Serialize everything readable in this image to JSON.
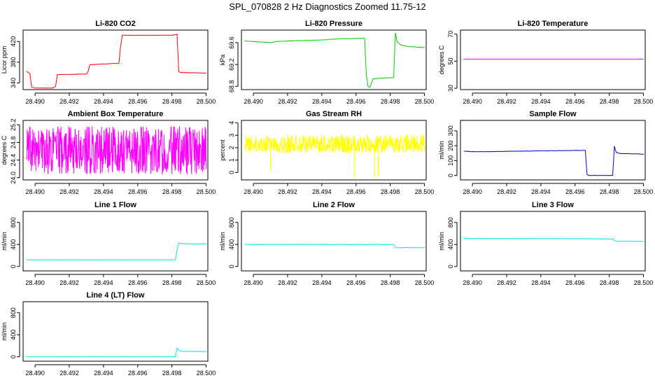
{
  "figure": {
    "title": "SPL_070828  2 Hz Diagnostics Zoomed 11.75-12",
    "x_ticks": [
      "28.490",
      "28.492",
      "28.494",
      "28.496",
      "28.498",
      "28.500"
    ]
  },
  "chart_data": [
    {
      "type": "line",
      "title": "Li-820 CO2",
      "ylabel": "Licor ppm",
      "color": "#ff0000",
      "xlim": [
        28.4893,
        28.5001
      ],
      "ylim": [
        327,
        442
      ],
      "yticks": [
        340,
        380,
        420
      ],
      "x": [
        28.4895,
        28.4897,
        28.4898,
        28.49,
        28.491,
        28.4912,
        28.4913,
        28.493,
        28.4931,
        28.4932,
        28.4949,
        28.495,
        28.4951,
        28.498,
        28.4983,
        28.4984,
        28.4985,
        28.5
      ],
      "y": [
        362,
        358,
        332,
        330,
        330,
        333,
        356,
        357,
        362,
        375,
        378,
        410,
        432,
        432,
        434,
        362,
        360,
        359
      ]
    },
    {
      "type": "line",
      "title": "Li-820 Pressure",
      "ylabel": "kPa",
      "color": "#00cc00",
      "xlim": [
        28.4893,
        28.5001
      ],
      "ylim": [
        68.74,
        69.83
      ],
      "yticks": [
        68.8,
        69.2,
        69.6
      ],
      "x": [
        28.4895,
        28.491,
        28.4913,
        28.492,
        28.494,
        28.495,
        28.4965,
        28.4966,
        28.4967,
        28.4968,
        28.497,
        28.4982,
        28.4983,
        28.4984,
        28.4986,
        28.499,
        28.5
      ],
      "y": [
        69.63,
        69.6,
        69.62,
        69.63,
        69.65,
        69.67,
        69.68,
        69.02,
        68.8,
        68.78,
        68.94,
        68.96,
        69.78,
        69.62,
        69.56,
        69.53,
        69.51
      ]
    },
    {
      "type": "line",
      "title": "Li-820 Temperature",
      "ylabel": "degrees C",
      "color": "#ff00ff",
      "xlim": [
        28.4893,
        28.5001
      ],
      "ylim": [
        29,
        73
      ],
      "yticks": [
        30,
        50,
        70
      ],
      "x": [
        28.4895,
        28.5
      ],
      "y": [
        51.5,
        51.5
      ]
    },
    {
      "type": "line",
      "title": "Ambient Box Temperature",
      "ylabel": "degrees C",
      "color": "#ff00ff",
      "xlim": [
        28.4893,
        28.5001
      ],
      "ylim": [
        23.95,
        25.3
      ],
      "yticks": [
        24.0,
        24.4,
        24.8,
        25.2
      ],
      "x": [
        28.4895,
        28.49,
        28.4905,
        28.491,
        28.4915,
        28.492,
        28.4925,
        28.493,
        28.4935,
        28.494,
        28.4945,
        28.495,
        28.4955,
        28.496,
        28.4965,
        28.497,
        28.4975,
        28.498,
        28.4985,
        28.499,
        28.4995,
        28.5
      ],
      "y": [
        24.6,
        24.3,
        25.1,
        24.4,
        24.9,
        24.2,
        25.0,
        24.5,
        24.8,
        24.1,
        25.2,
        24.4,
        24.7,
        24.3,
        25.0,
        24.5,
        24.9,
        24.2,
        25.1,
        24.6,
        24.4,
        25.0
      ],
      "y_range_shown": [
        24.0,
        25.25
      ]
    },
    {
      "type": "line",
      "title": "Gas Stream RH",
      "ylabel": "percent",
      "color": "#ffff00",
      "xlim": [
        28.4893,
        28.5001
      ],
      "ylim": [
        -0.6,
        4.2
      ],
      "yticks": [
        0,
        1,
        2,
        3,
        4
      ],
      "x": [
        28.4895,
        28.49,
        28.4905,
        28.491,
        28.4915,
        28.492,
        28.4925,
        28.493,
        28.4935,
        28.494,
        28.4945,
        28.495,
        28.4955,
        28.496,
        28.4965,
        28.497,
        28.4975,
        28.498,
        28.4985,
        28.499,
        28.4995,
        28.5
      ],
      "y": [
        2.2,
        1.8,
        3.0,
        2.1,
        2.6,
        1.7,
        3.2,
        2.3,
        2.0,
        2.9,
        1.9,
        2.5,
        3.4,
        2.2,
        1.8,
        2.8,
        2.4,
        2.0,
        3.1,
        2.3,
        1.9,
        2.6
      ],
      "dips": [
        {
          "x": 28.491,
          "y": 0.1
        },
        {
          "x": 28.4959,
          "y": -0.4
        },
        {
          "x": 28.4971,
          "y": -0.4
        },
        {
          "x": 28.4973,
          "y": -0.3
        }
      ]
    },
    {
      "type": "line",
      "title": "Sample Flow",
      "ylabel": "ml/min",
      "color": "#0000cc",
      "xlim": [
        28.4893,
        28.5001
      ],
      "ylim": [
        -30,
        370
      ],
      "yticks": [
        0,
        100,
        200,
        300
      ],
      "x": [
        28.4895,
        28.49,
        28.491,
        28.492,
        28.494,
        28.496,
        28.4966,
        28.4967,
        28.4968,
        28.4982,
        28.4983,
        28.4984,
        28.4986,
        28.5
      ],
      "y": [
        163,
        160,
        160,
        162,
        165,
        168,
        168,
        5,
        0,
        0,
        195,
        155,
        148,
        143
      ]
    },
    {
      "type": "line",
      "title": "Line 1 Flow",
      "ylabel": "ml/min",
      "color": "#00e5ee",
      "xlim": [
        28.4893,
        28.5001
      ],
      "ylim": [
        -80,
        1000
      ],
      "yticks": [
        0,
        400,
        800
      ],
      "x": [
        28.4895,
        28.4982,
        28.4983,
        28.4984,
        28.499,
        28.5
      ],
      "y": [
        120,
        120,
        300,
        420,
        410,
        410
      ]
    },
    {
      "type": "line",
      "title": "Line 2 Flow",
      "ylabel": "ml/min",
      "color": "#00e5ee",
      "xlim": [
        28.4893,
        28.5001
      ],
      "ylim": [
        -80,
        1000
      ],
      "yticks": [
        0,
        400,
        800
      ],
      "x": [
        28.4895,
        28.4982,
        28.4983,
        28.4984,
        28.499,
        28.5
      ],
      "y": [
        400,
        400,
        350,
        340,
        345,
        340
      ]
    },
    {
      "type": "line",
      "title": "Line 3 Flow",
      "ylabel": "ml/min",
      "color": "#00e5ee",
      "xlim": [
        28.4893,
        28.5001
      ],
      "ylim": [
        -80,
        1000
      ],
      "yticks": [
        0,
        400,
        800
      ],
      "x": [
        28.4895,
        28.496,
        28.4982,
        28.4983,
        28.4984,
        28.499,
        28.5
      ],
      "y": [
        510,
        505,
        500,
        470,
        460,
        460,
        455
      ]
    },
    {
      "type": "line",
      "title": "Line 4 (LT) Flow",
      "ylabel": "ml/min",
      "color": "#00e5ee",
      "xlim": [
        28.4893,
        28.5001
      ],
      "ylim": [
        -80,
        1000
      ],
      "yticks": [
        0,
        400,
        800
      ],
      "x": [
        28.4895,
        28.4982,
        28.4983,
        28.4984,
        28.4986,
        28.5
      ],
      "y": [
        0,
        0,
        160,
        120,
        100,
        95
      ]
    }
  ]
}
